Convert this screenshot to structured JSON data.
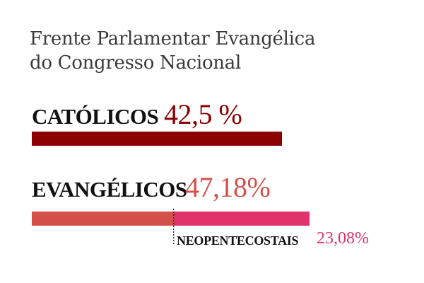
{
  "title_lines": [
    "Frente Parlamentar Evangélica",
    "do Congresso Nacional"
  ],
  "colors": {
    "catolicos": "#8b0000",
    "evangelicos": "#d4514b",
    "neopentecostais": "#e0336b",
    "label": "#111111",
    "title": "#3a3a3a"
  },
  "chart_data": {
    "type": "bar",
    "orientation": "horizontal",
    "title": "Frente Parlamentar Evangélica do Congresso Nacional",
    "categories": [
      "CATÓLICOS",
      "EVANGÉLICOS"
    ],
    "values": [
      42.5,
      47.18
    ],
    "value_labels": [
      "42,5 %",
      "47,18%"
    ],
    "subsegment": {
      "parent": "EVANGÉLICOS",
      "label": "NEOPENTECOSTAIS",
      "value": 23.08,
      "value_label": "23,08%"
    },
    "xlim": [
      0,
      100
    ]
  }
}
